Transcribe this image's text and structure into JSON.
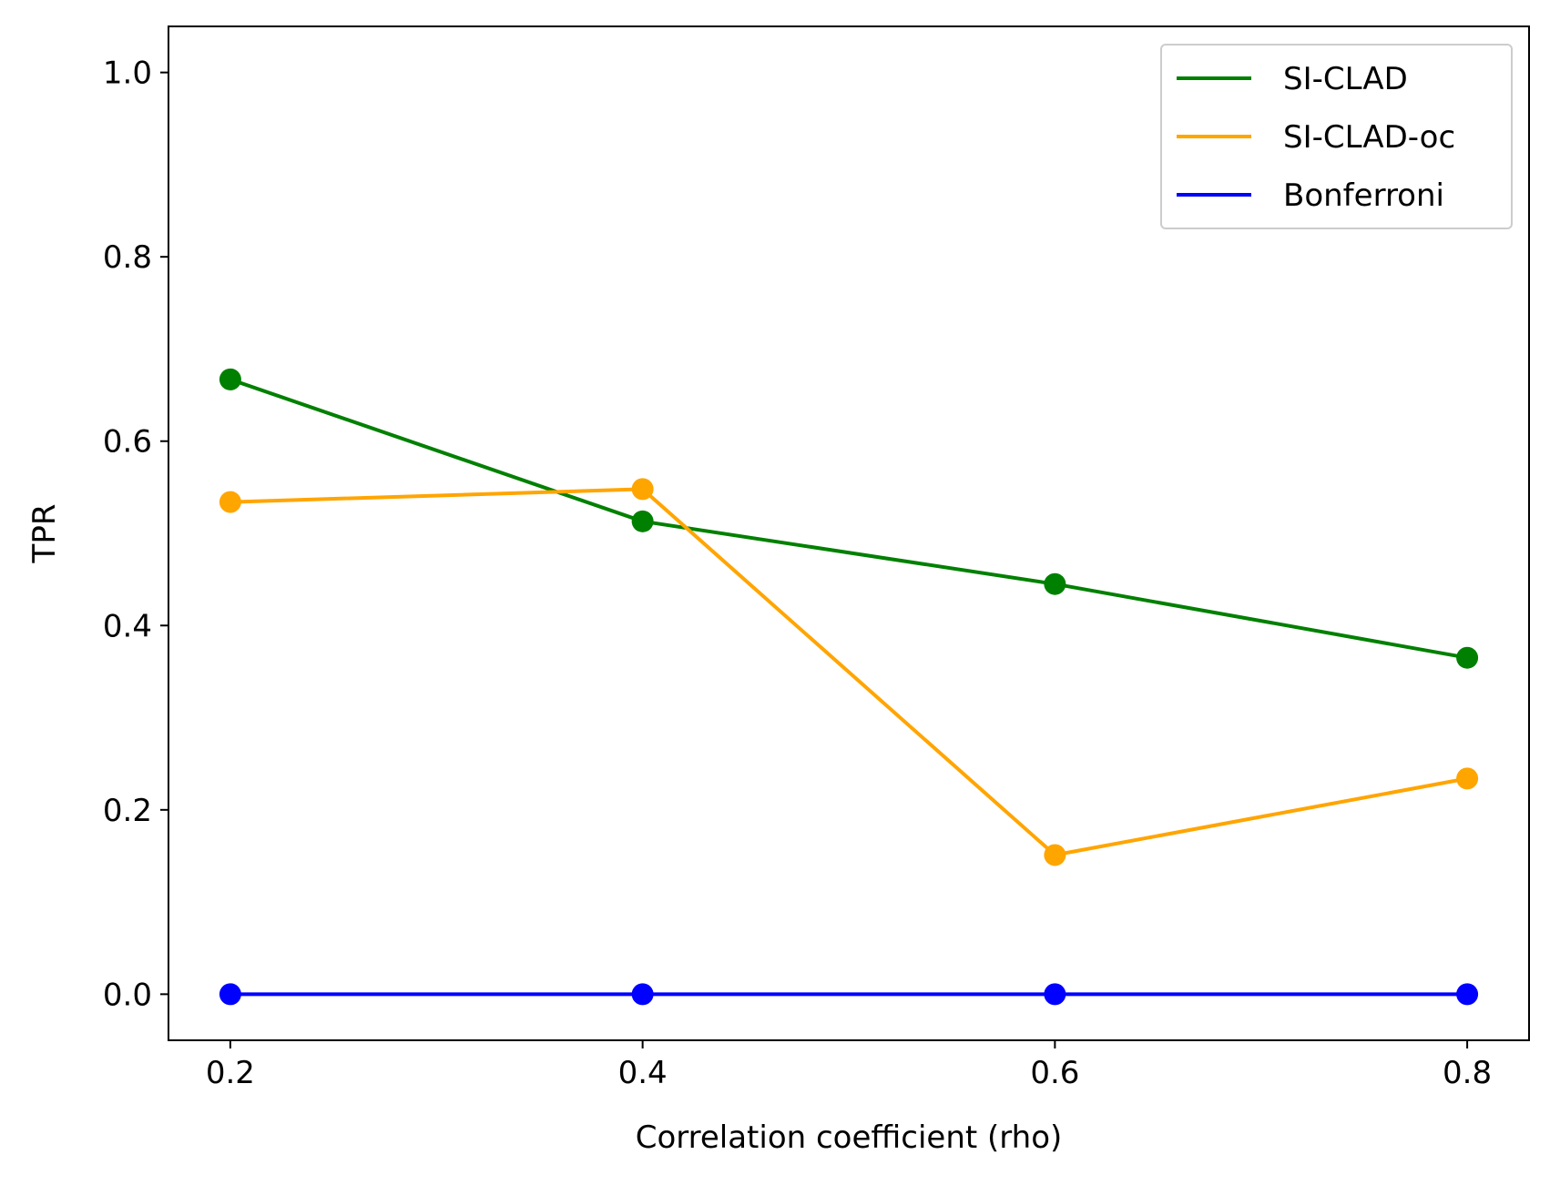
{
  "chart_data": {
    "type": "line",
    "title": "",
    "xlabel": "Correlation coefficient (rho)",
    "ylabel": "TPR",
    "x": [
      0.2,
      0.4,
      0.6,
      0.8
    ],
    "x_tick_labels": [
      "0.2",
      "0.4",
      "0.6",
      "0.8"
    ],
    "y_tick_labels": [
      "0.0",
      "0.2",
      "0.4",
      "0.6",
      "0.8",
      "1.0"
    ],
    "y_ticks": [
      0.0,
      0.2,
      0.4,
      0.6,
      0.8,
      1.0
    ],
    "xlim": [
      0.17,
      0.83
    ],
    "ylim": [
      -0.05,
      1.05
    ],
    "grid": false,
    "legend_position": "top-right",
    "series": [
      {
        "name": "SI-CLAD",
        "color": "#008000",
        "values": [
          0.667,
          0.513,
          0.445,
          0.365
        ]
      },
      {
        "name": "SI-CLAD-oc",
        "color": "#FFA500",
        "values": [
          0.534,
          0.548,
          0.151,
          0.234
        ]
      },
      {
        "name": "Bonferroni",
        "color": "#0000FF",
        "values": [
          0.0,
          0.0,
          0.0,
          0.0
        ]
      }
    ]
  }
}
